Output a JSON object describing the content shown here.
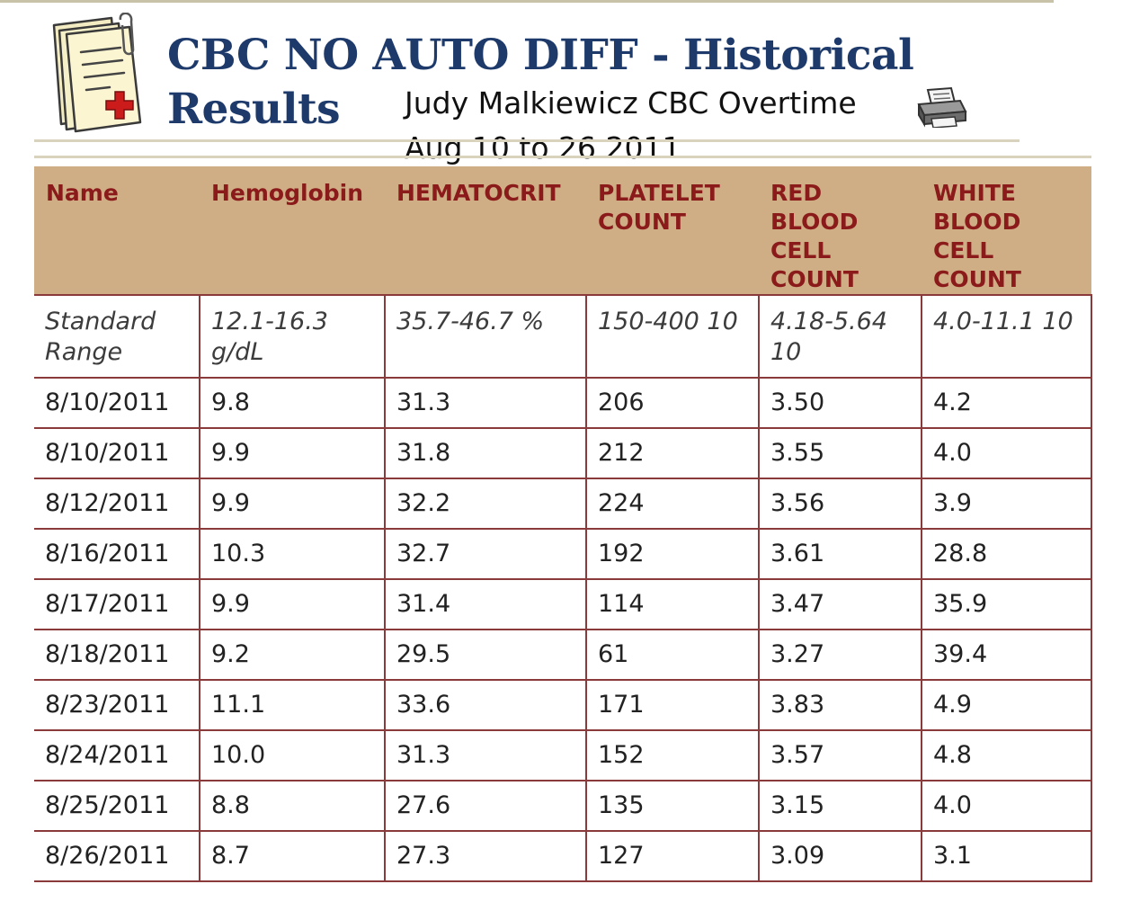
{
  "header": {
    "title_line1": "CBC NO AUTO DIFF - Historical",
    "title_line2": "Results",
    "subtitle_line1": "Judy Malkiewicz CBC Overtime",
    "subtitle_line2": "Aug 10 to 26 2011",
    "doc_icon": "medical-record-icon",
    "print_icon": "printer-icon"
  },
  "colors": {
    "title": "#1d3a6b",
    "header_bg": "#cfae86",
    "header_text": "#8b1a1a",
    "grid": "#8a3a3a"
  },
  "table": {
    "columns": [
      "Name",
      "Hemoglobin",
      "HEMATOCRIT",
      "PLATELET COUNT",
      "RED BLOOD CELL COUNT",
      "WHITE BLOOD CELL COUNT"
    ],
    "standard_range": {
      "label": "Standard Range",
      "values": [
        "12.1-16.3 g/dL",
        "35.7-46.7 %",
        "150-400 10",
        "4.18-5.64 10",
        "4.0-11.1 10"
      ]
    },
    "rows": [
      [
        "8/10/2011",
        "9.8",
        "31.3",
        "206",
        "3.50",
        "4.2"
      ],
      [
        "8/10/2011",
        "9.9",
        "31.8",
        "212",
        "3.55",
        "4.0"
      ],
      [
        "8/12/2011",
        "9.9",
        "32.2",
        "224",
        "3.56",
        "3.9"
      ],
      [
        "8/16/2011",
        "10.3",
        "32.7",
        "192",
        "3.61",
        "28.8"
      ],
      [
        "8/17/2011",
        "9.9",
        "31.4",
        "114",
        "3.47",
        "35.9"
      ],
      [
        "8/18/2011",
        "9.2",
        "29.5",
        "61",
        "3.27",
        "39.4"
      ],
      [
        "8/23/2011",
        "11.1",
        "33.6",
        "171",
        "3.83",
        "4.9"
      ],
      [
        "8/24/2011",
        "10.0",
        "31.3",
        "152",
        "3.57",
        "4.8"
      ],
      [
        "8/25/2011",
        "8.8",
        "27.6",
        "135",
        "3.15",
        "4.0"
      ],
      [
        "8/26/2011",
        "8.7",
        "27.3",
        "127",
        "3.09",
        "3.1"
      ]
    ]
  }
}
